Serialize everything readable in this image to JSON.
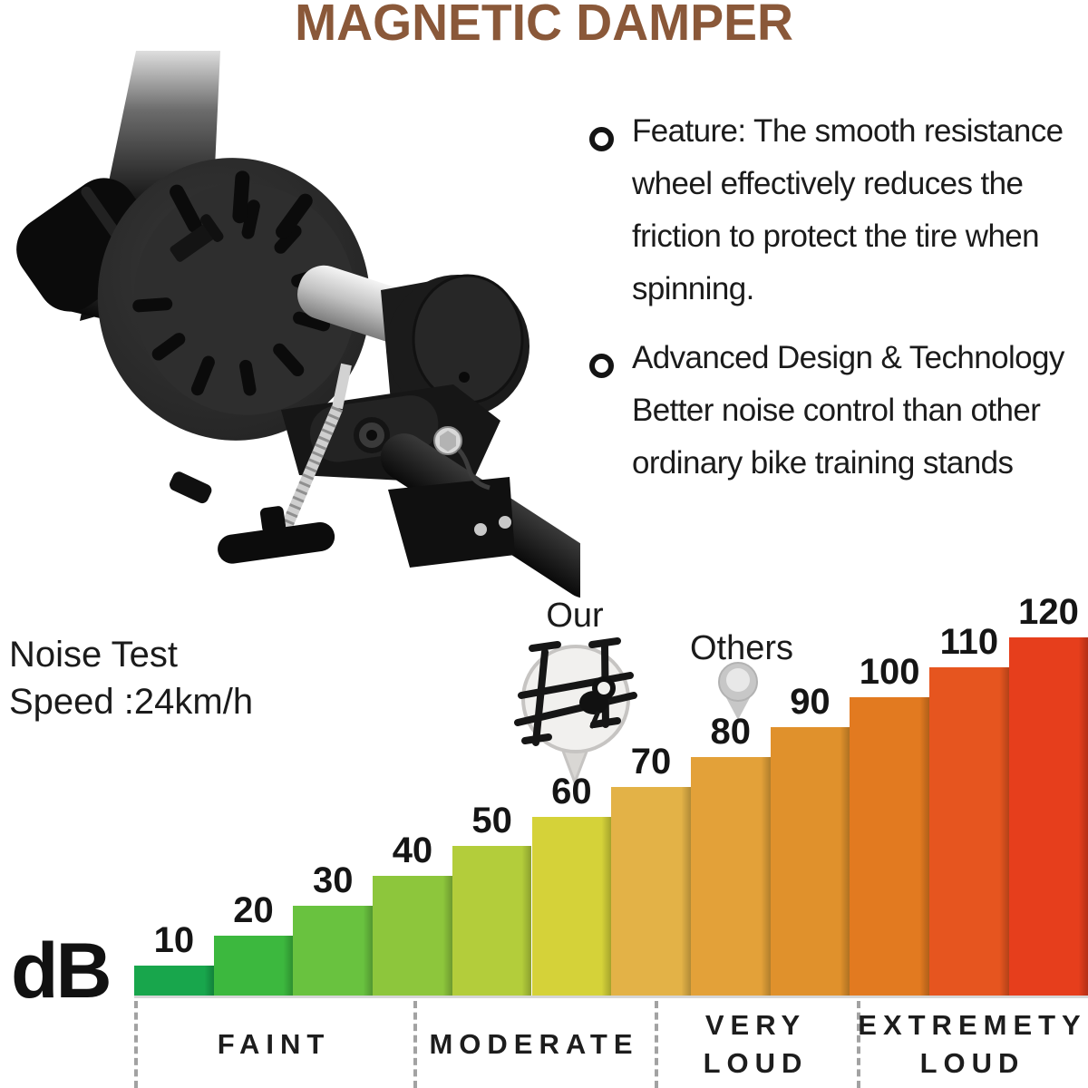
{
  "title": "MAGNETIC DAMPER",
  "accent_color": "#8a5839",
  "bullets": [
    {
      "lines": [
        "Feature: The smooth resistance",
        "wheel effectively reduces the",
        "friction to protect the tire when",
        "spinning."
      ]
    },
    {
      "lines": [
        "Advanced Design & Technology",
        "Better noise control than other",
        "ordinary bike training stands"
      ]
    }
  ],
  "noise_note": {
    "lines": [
      "Noise Test",
      "Speed :24km/h"
    ]
  },
  "axis_unit": "dB",
  "markers": {
    "our_label": "Our",
    "others_label": "Others"
  },
  "chart_data": {
    "type": "bar",
    "title": "Noise Test Speed :24km/h",
    "ylabel": "dB",
    "categories": [
      "10",
      "20",
      "30",
      "40",
      "50",
      "60",
      "70",
      "80",
      "90",
      "100",
      "110",
      "120"
    ],
    "values": [
      10,
      20,
      30,
      40,
      50,
      60,
      70,
      80,
      90,
      100,
      110,
      120
    ],
    "ylim": [
      0,
      120
    ],
    "grid": false,
    "legend": false,
    "bar_colors": [
      "#18a64c",
      "#3cb83e",
      "#69c23f",
      "#8dc63c",
      "#b3cd3b",
      "#d5d239",
      "#e3b247",
      "#e3a139",
      "#e0912c",
      "#e27a20",
      "#e6551f",
      "#e63e1c"
    ],
    "zones": [
      {
        "label_lines": [
          "FAINT"
        ],
        "range_db": [
          10,
          40
        ]
      },
      {
        "label_lines": [
          "MODERATE"
        ],
        "range_db": [
          50,
          70
        ]
      },
      {
        "label_lines": [
          "VERY",
          "LOUD"
        ],
        "range_db": [
          80,
          90
        ]
      },
      {
        "label_lines": [
          "EXTREMETY",
          "LOUD"
        ],
        "range_db": [
          100,
          120
        ]
      }
    ],
    "annotations": {
      "our_marker_db": 60,
      "others_marker_db": 80
    }
  }
}
